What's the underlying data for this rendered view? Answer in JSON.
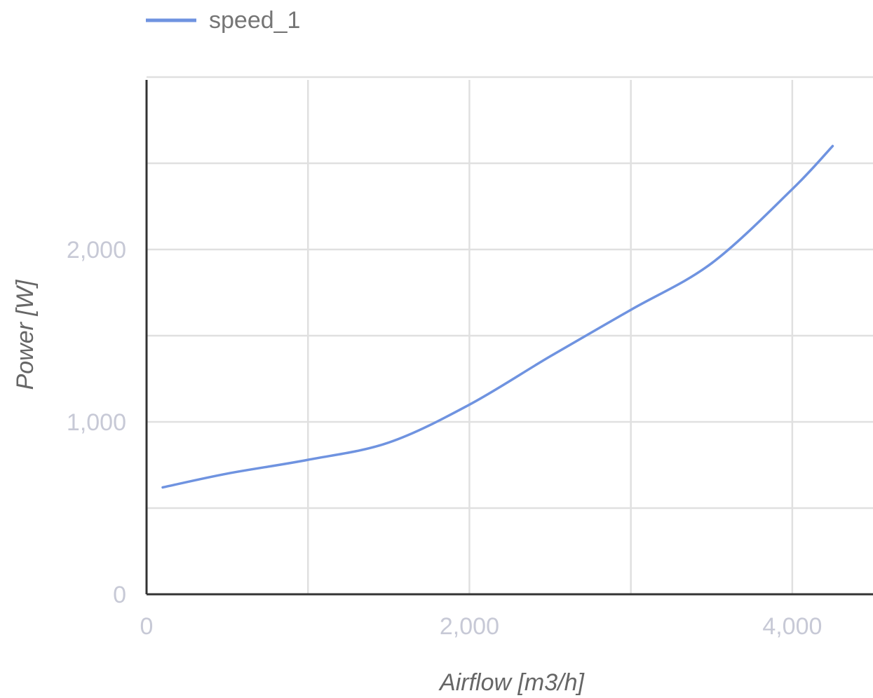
{
  "chart_data": {
    "type": "line",
    "title": "",
    "xlabel": "Airflow [m3/h]",
    "ylabel": "Power [W]",
    "xlim": [
      0,
      4500
    ],
    "ylim": [
      0,
      3000
    ],
    "x_ticks": [
      0,
      2000,
      4000
    ],
    "x_tick_labels": [
      "0",
      "2,000",
      "4,000"
    ],
    "y_ticks": [
      0,
      1000,
      2000
    ],
    "y_tick_labels": [
      "0",
      "1,000",
      "2,000"
    ],
    "x_gridlines": [
      0,
      1000,
      2000,
      3000,
      4000
    ],
    "y_gridlines": [
      500,
      1000,
      1500,
      2000,
      2500,
      3000
    ],
    "grid": true,
    "legend_position": "top-left",
    "series": [
      {
        "name": "speed_1",
        "color": "#6f93e0",
        "x": [
          100,
          500,
          1000,
          1500,
          2000,
          2500,
          3000,
          3500,
          4000,
          4250
        ],
        "y": [
          620,
          700,
          780,
          880,
          1100,
          1380,
          1650,
          1920,
          2350,
          2600
        ]
      }
    ]
  }
}
